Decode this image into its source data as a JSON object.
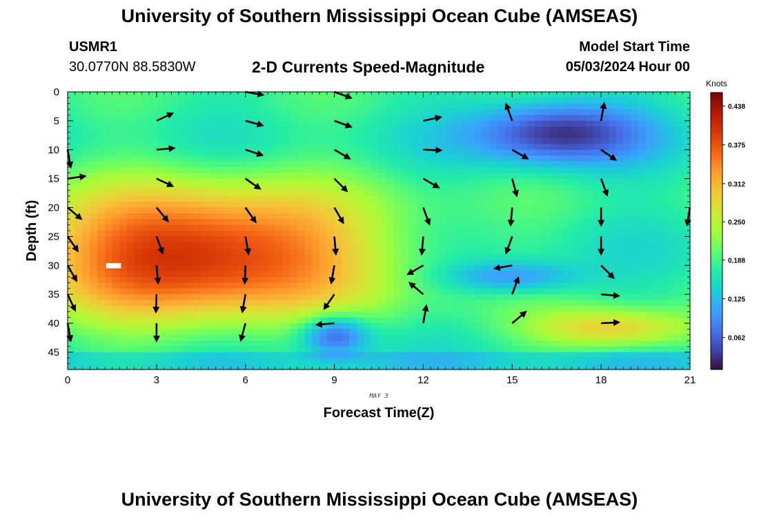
{
  "header": {
    "title": "University of Southern Mississippi Ocean Cube (AMSEAS)",
    "station_id": "USMR1",
    "coordinates": "30.0770N  88.5830W",
    "chart_title": "2-D Currents Speed-Magnitude",
    "model_start_label": "Model Start Time",
    "model_start_value": "05/03/2024 Hour 00"
  },
  "footer": {
    "title": "University of Southern Mississippi Ocean Cube (AMSEAS)"
  },
  "chart_data": {
    "type": "heatmap",
    "title": "2-D Currents Speed-Magnitude",
    "xlabel": "Forecast Time(Z)",
    "ylabel": "Depth (ft)",
    "date_label": "MAY 3",
    "xlim": [
      0,
      21
    ],
    "ylim": [
      0,
      48
    ],
    "y_inverted": true,
    "x_ticks": [
      0,
      3,
      6,
      9,
      12,
      15,
      18,
      21
    ],
    "y_ticks": [
      0,
      5,
      10,
      15,
      20,
      25,
      30,
      35,
      40,
      45
    ],
    "colorbar": {
      "label": "Knots",
      "min": 0.01,
      "max": 0.46,
      "ticks": [
        "0.438",
        "0.375",
        "0.312",
        "0.250",
        "0.188",
        "0.125",
        "0.062"
      ],
      "tick_values": [
        0.438,
        0.375,
        0.312,
        0.25,
        0.188,
        0.125,
        0.062
      ],
      "colors": [
        "#30123b",
        "#4145ab",
        "#4675ed",
        "#39a2fc",
        "#1bcfd4",
        "#24eca6",
        "#61fc6c",
        "#a4fc3b",
        "#d1e834",
        "#f3c63a",
        "#fe9b2d",
        "#f36315",
        "#d93806",
        "#b11901",
        "#7a0402"
      ]
    },
    "speed_features": [
      {
        "time": 4.5,
        "depth": 28,
        "sigma_time": 4.2,
        "sigma_depth": 8,
        "speed": 0.42
      },
      {
        "time": 16.5,
        "depth": 7,
        "sigma_time": 2.0,
        "sigma_depth": 4,
        "speed": 0.03
      },
      {
        "time": 9.0,
        "depth": 42,
        "sigma_time": 0.8,
        "sigma_depth": 2.5,
        "speed": 0.04
      },
      {
        "time": 15.0,
        "depth": 32,
        "sigma_time": 1.6,
        "sigma_depth": 2.0,
        "speed": 0.08
      },
      {
        "time": 18.5,
        "depth": 41,
        "sigma_time": 2.0,
        "sigma_depth": 2.5,
        "speed": 0.3
      }
    ],
    "vectors": [
      {
        "time": 0,
        "depth": 10,
        "angle": 80
      },
      {
        "time": 0,
        "depth": 15,
        "angle": -8
      },
      {
        "time": 0,
        "depth": 20,
        "angle": 40
      },
      {
        "time": 0,
        "depth": 25,
        "angle": 55
      },
      {
        "time": 0,
        "depth": 30,
        "angle": 60
      },
      {
        "time": 0,
        "depth": 35,
        "angle": 65
      },
      {
        "time": 0,
        "depth": 40,
        "angle": 80
      },
      {
        "time": 3,
        "depth": 5,
        "angle": -25
      },
      {
        "time": 3,
        "depth": 10,
        "angle": -5
      },
      {
        "time": 3,
        "depth": 15,
        "angle": 25
      },
      {
        "time": 3,
        "depth": 20,
        "angle": 50
      },
      {
        "time": 3,
        "depth": 25,
        "angle": 70
      },
      {
        "time": 3,
        "depth": 30,
        "angle": 85
      },
      {
        "time": 3,
        "depth": 35,
        "angle": 92
      },
      {
        "time": 3,
        "depth": 40,
        "angle": 90
      },
      {
        "time": 6,
        "depth": 0,
        "angle": 10
      },
      {
        "time": 6,
        "depth": 5,
        "angle": 15
      },
      {
        "time": 6,
        "depth": 10,
        "angle": 18
      },
      {
        "time": 6,
        "depth": 15,
        "angle": 35
      },
      {
        "time": 6,
        "depth": 20,
        "angle": 55
      },
      {
        "time": 6,
        "depth": 25,
        "angle": 80
      },
      {
        "time": 6,
        "depth": 30,
        "angle": 92
      },
      {
        "time": 6,
        "depth": 35,
        "angle": 100
      },
      {
        "time": 6,
        "depth": 40,
        "angle": 105
      },
      {
        "time": 9,
        "depth": 0,
        "angle": 20
      },
      {
        "time": 9,
        "depth": 5,
        "angle": 20
      },
      {
        "time": 9,
        "depth": 10,
        "angle": 30
      },
      {
        "time": 9,
        "depth": 15,
        "angle": 45
      },
      {
        "time": 9,
        "depth": 20,
        "angle": 60
      },
      {
        "time": 9,
        "depth": 25,
        "angle": 85
      },
      {
        "time": 9,
        "depth": 30,
        "angle": 100
      },
      {
        "time": 9,
        "depth": 35,
        "angle": 125
      },
      {
        "time": 9,
        "depth": 40,
        "angle": 175
      },
      {
        "time": 12,
        "depth": 5,
        "angle": -12
      },
      {
        "time": 12,
        "depth": 10,
        "angle": 2
      },
      {
        "time": 12,
        "depth": 15,
        "angle": 30
      },
      {
        "time": 12,
        "depth": 20,
        "angle": 70
      },
      {
        "time": 12,
        "depth": 25,
        "angle": 95
      },
      {
        "time": 12,
        "depth": 30,
        "angle": 150
      },
      {
        "time": 12,
        "depth": 35,
        "angle": 220
      },
      {
        "time": 12,
        "depth": 40,
        "angle": 280
      },
      {
        "time": 15,
        "depth": 5,
        "angle": 250
      },
      {
        "time": 15,
        "depth": 10,
        "angle": 30
      },
      {
        "time": 15,
        "depth": 15,
        "angle": 75
      },
      {
        "time": 15,
        "depth": 20,
        "angle": 95
      },
      {
        "time": 15,
        "depth": 25,
        "angle": 110
      },
      {
        "time": 15,
        "depth": 30,
        "angle": 170
      },
      {
        "time": 15,
        "depth": 35,
        "angle": 290
      },
      {
        "time": 15,
        "depth": 40,
        "angle": 320
      },
      {
        "time": 18,
        "depth": 5,
        "angle": 280
      },
      {
        "time": 18,
        "depth": 10,
        "angle": 35
      },
      {
        "time": 18,
        "depth": 15,
        "angle": 70
      },
      {
        "time": 18,
        "depth": 20,
        "angle": 90
      },
      {
        "time": 18,
        "depth": 25,
        "angle": 90
      },
      {
        "time": 18,
        "depth": 30,
        "angle": 45
      },
      {
        "time": 18,
        "depth": 35,
        "angle": 5
      },
      {
        "time": 18,
        "depth": 40,
        "angle": -3
      },
      {
        "time": 21,
        "depth": 20,
        "angle": 100
      }
    ]
  }
}
